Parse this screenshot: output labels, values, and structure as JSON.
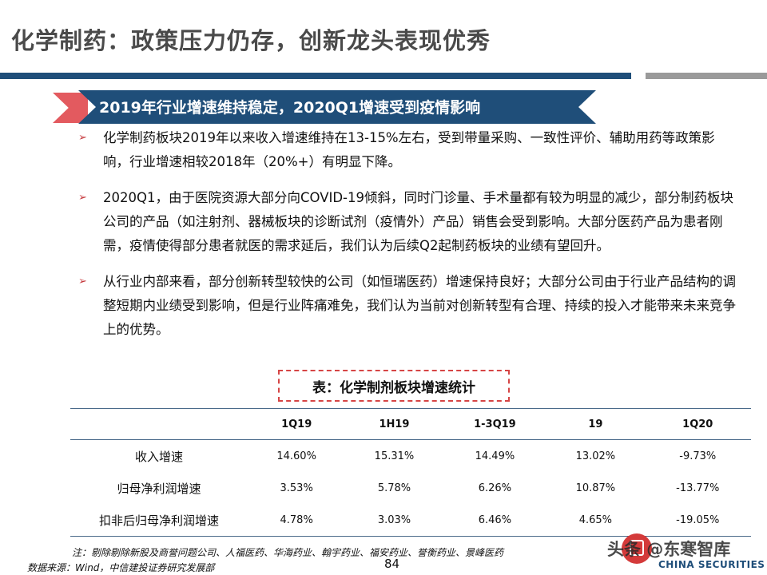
{
  "slide": {
    "title": "化学制药：政策压力仍存，创新龙头表现优秀",
    "section_heading": "2019年行业增速维持稳定，2020Q1增速受到疫情影响",
    "bullet_marker": "➢",
    "bullets": [
      "化学制药板块2019年以来收入增速维持在13-15%左右，受到带量采购、一致性评价、辅助用药等政策影响，行业增速相较2018年（20%+）有明显下降。",
      "2020Q1，由于医院资源大部分向COVID-19倾斜，同时门诊量、手术量都有较为明显的减少，部分制药板块公司的产品（如注射剂、器械板块的诊断试剂（疫情外）产品）销售会受到影响。大部分医药产品为患者刚需，疫情使得部分患者就医的需求延后，我们认为后续Q2起制药板块的业绩有望回升。",
      "从行业内部来看，部分创新转型较快的公司（如恒瑞医药）增速保持良好；大部分公司由于行业产品结构的调整短期内业绩受到影响，但是行业阵痛难免，我们认为当前对创新转型有合理、持续的投入才能带来未来竞争上的优势。"
    ]
  },
  "table": {
    "caption": "表：化学制剂板块增速统计",
    "columns": [
      "",
      "1Q19",
      "1H19",
      "1-3Q19",
      "19",
      "1Q20"
    ],
    "rows": [
      {
        "label": "收入增速",
        "values": [
          "14.60%",
          "15.31%",
          "14.49%",
          "13.02%",
          "-9.73%"
        ]
      },
      {
        "label": "归母净利润增速",
        "values": [
          "3.53%",
          "5.78%",
          "6.26%",
          "10.87%",
          "-13.77%"
        ]
      },
      {
        "label": "扣非后归母净利润增速",
        "values": [
          "4.78%",
          "3.03%",
          "6.46%",
          "4.65%",
          "-19.05%"
        ]
      }
    ]
  },
  "footer": {
    "note": "注：剔除剔除新股及商誉问题公司、人福医药、华海药业、翰宇药业、福安药业、誉衡药业、景峰医药",
    "source": "数据来源：Wind，中信建投证券研究发展部",
    "page_number": "84",
    "watermark": "头条 @东寒智库",
    "brand": "CHINA SECURITIES"
  },
  "colors": {
    "primary_blue": "#1f4e79",
    "accent_red": "#e35a5f",
    "title_gray": "#4a4a4a"
  }
}
